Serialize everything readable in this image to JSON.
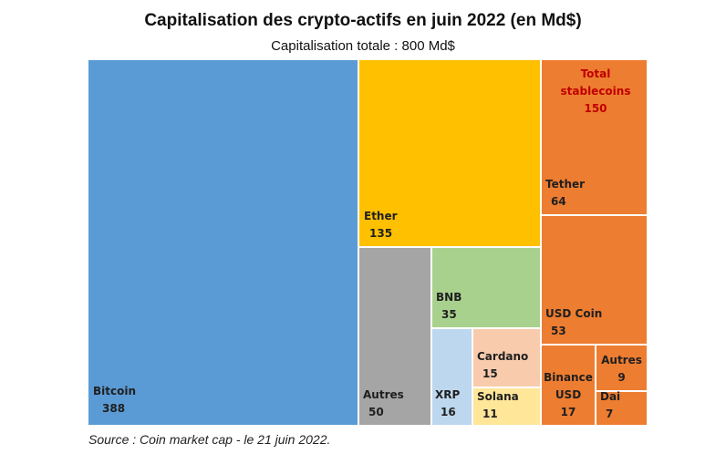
{
  "chart_data": {
    "type": "treemap",
    "title": "Capitalisation des crypto-actifs en juin 2022 (en Md$)",
    "subtitle": "Capitalisation totale : 800 Md$",
    "source": "Source : Coin market cap - le 21 juin 2022.",
    "stablecoins": {
      "label": "Total stablecoins",
      "value": 150,
      "color": "#C00000"
    },
    "items": [
      {
        "name": "Bitcoin",
        "value": 388,
        "color": "#5B9BD5"
      },
      {
        "name": "Ether",
        "value": 135,
        "color": "#FFC000"
      },
      {
        "name": "Autres",
        "value": 50,
        "color": "#A5A5A5"
      },
      {
        "name": "BNB",
        "value": 35,
        "color": "#A9D18E"
      },
      {
        "name": "XRP",
        "value": 16,
        "color": "#BDD7EE"
      },
      {
        "name": "Cardano",
        "value": 15,
        "color": "#F8CBAD"
      },
      {
        "name": "Solana",
        "value": 11,
        "color": "#FFE699"
      },
      {
        "name": "Tether",
        "value": 64,
        "color": "#ED7D31"
      },
      {
        "name": "USD Coin",
        "value": 53,
        "color": "#ED7D31"
      },
      {
        "name": "Binance USD",
        "value": 17,
        "color": "#ED7D31"
      },
      {
        "name": "Autres",
        "value": 9,
        "color": "#ED7D31"
      },
      {
        "name": "Dai",
        "value": 7,
        "color": "#ED7D31"
      }
    ]
  }
}
